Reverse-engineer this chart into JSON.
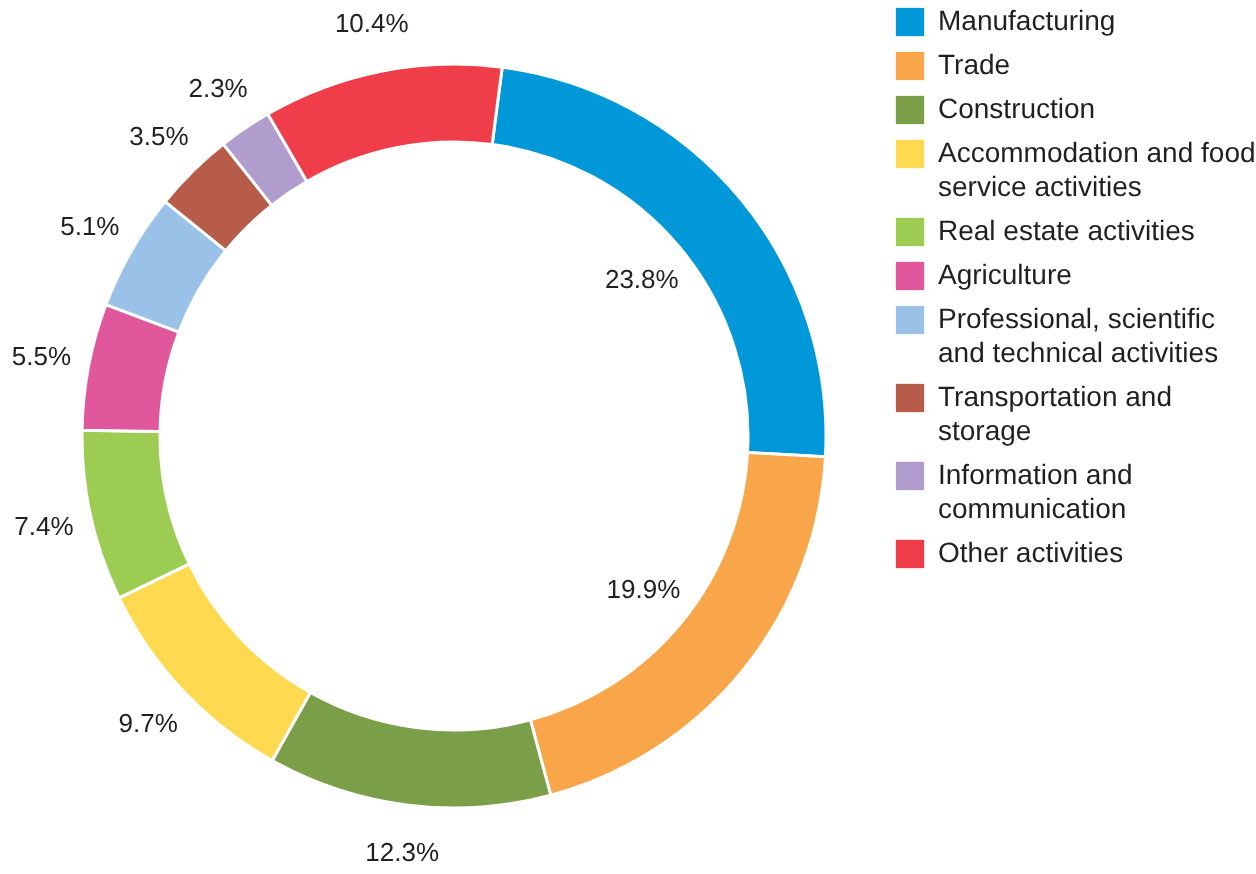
{
  "chart_data": {
    "type": "donut",
    "categories": [
      "Manufacturing",
      "Trade",
      "Construction",
      "Accommodation and food service activities",
      "Real estate activities",
      "Agriculture",
      "Professional, scientific and technical activities",
      "Transportation and storage",
      "Information and communication",
      "Other activities"
    ],
    "values": [
      23.8,
      19.9,
      12.3,
      9.7,
      7.4,
      5.5,
      5.1,
      3.5,
      2.3,
      10.4
    ],
    "colors": [
      "#0098d8",
      "#f9a54a",
      "#7b9e48",
      "#ffd94f",
      "#9ccc52",
      "#e0589b",
      "#9ac2e8",
      "#b85c4a",
      "#b09ccd",
      "#ef3e4a"
    ],
    "value_labels": [
      "23.8%",
      "19.9%",
      "12.3%",
      "9.7%",
      "7.4%",
      "5.5%",
      "5.1%",
      "3.5%",
      "2.3%",
      "10.4%"
    ],
    "legend": "right"
  }
}
